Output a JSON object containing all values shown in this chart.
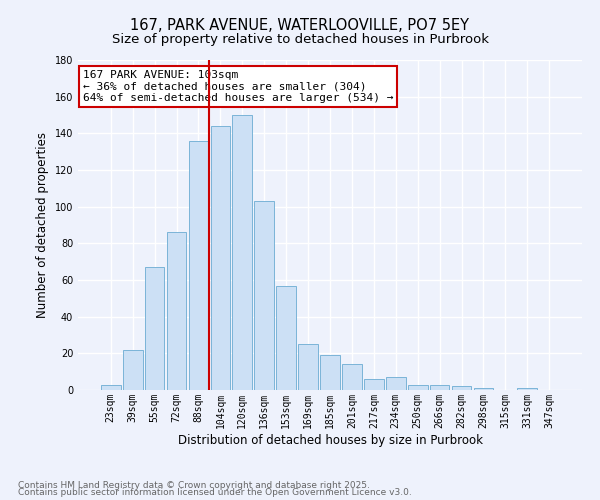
{
  "title": "167, PARK AVENUE, WATERLOOVILLE, PO7 5EY",
  "subtitle": "Size of property relative to detached houses in Purbrook",
  "xlabel": "Distribution of detached houses by size in Purbrook",
  "ylabel": "Number of detached properties",
  "bin_labels": [
    "23sqm",
    "39sqm",
    "55sqm",
    "72sqm",
    "88sqm",
    "104sqm",
    "120sqm",
    "136sqm",
    "153sqm",
    "169sqm",
    "185sqm",
    "201sqm",
    "217sqm",
    "234sqm",
    "250sqm",
    "266sqm",
    "282sqm",
    "298sqm",
    "315sqm",
    "331sqm",
    "347sqm"
  ],
  "bar_values": [
    3,
    22,
    67,
    86,
    136,
    144,
    150,
    103,
    57,
    25,
    19,
    14,
    6,
    7,
    3,
    3,
    2,
    1,
    0,
    1,
    0
  ],
  "bar_color": "#cce0f5",
  "bar_edge_color": "#7ab4d8",
  "vline_x_idx": 5,
  "vline_color": "#cc0000",
  "annotation_text": "167 PARK AVENUE: 103sqm\n← 36% of detached houses are smaller (304)\n64% of semi-detached houses are larger (534) →",
  "annotation_box_color": "#ffffff",
  "annotation_box_edge": "#cc0000",
  "ylim": [
    0,
    180
  ],
  "yticks": [
    0,
    20,
    40,
    60,
    80,
    100,
    120,
    140,
    160,
    180
  ],
  "footer1": "Contains HM Land Registry data © Crown copyright and database right 2025.",
  "footer2": "Contains public sector information licensed under the Open Government Licence v3.0.",
  "bg_color": "#eef2fc",
  "grid_color": "#ffffff",
  "title_fontsize": 10.5,
  "subtitle_fontsize": 9.5,
  "axis_label_fontsize": 8.5,
  "tick_fontsize": 7,
  "footer_fontsize": 6.5,
  "annotation_fontsize": 8
}
